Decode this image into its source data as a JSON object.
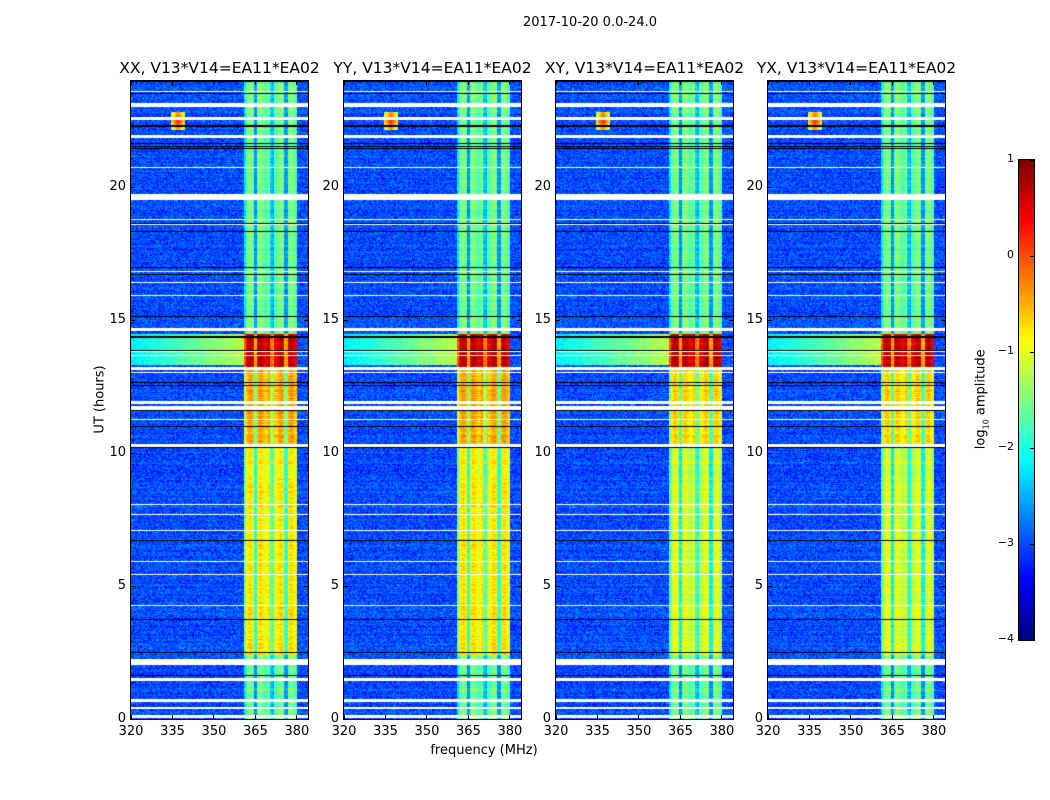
{
  "suptitle": "2017-10-20 0.0-24.0",
  "chart_data": {
    "type": "heatmap",
    "panels": [
      {
        "title": "XX, V13*V14=EA11*EA02",
        "pol": "XX"
      },
      {
        "title": "YY, V13*V14=EA11*EA02",
        "pol": "YY"
      },
      {
        "title": "XY, V13*V14=EA11*EA02",
        "pol": "XY"
      },
      {
        "title": "YX, V13*V14=EA11*EA02",
        "pol": "YX"
      }
    ],
    "xlabel": "frequency (MHz)",
    "ylabel": "UT (hours)",
    "xlim": [
      320,
      384
    ],
    "ylim": [
      0,
      24
    ],
    "xticks": [
      "320",
      "335",
      "350",
      "365",
      "380"
    ],
    "yticks": [
      "0",
      "5",
      "10",
      "15",
      "20"
    ],
    "colorbar": {
      "label_prefix": "log",
      "label_sub": "10",
      "label_suffix": " amplitude",
      "range": [
        -4,
        1
      ],
      "ticks": [
        "−4",
        "−3",
        "−2",
        "−1",
        "0",
        "1"
      ],
      "colormap": "jet"
    },
    "features": {
      "background_log_amp": -3,
      "bright_band_mhz": [
        361,
        380
      ],
      "band_dips_mhz": [
        365,
        371,
        376
      ],
      "strong_rfi_hours": [
        13.3,
        14.5
      ],
      "rfi_spot": {
        "freq_mhz": 337,
        "hour": 22.5
      },
      "flagged_hours": [
        0.1,
        0.7,
        1.5,
        2.1,
        2.2,
        10.3,
        11.7,
        11.9,
        13.2,
        14.65,
        19.6,
        19.7,
        21.9,
        22.6,
        23.1
      ]
    }
  }
}
